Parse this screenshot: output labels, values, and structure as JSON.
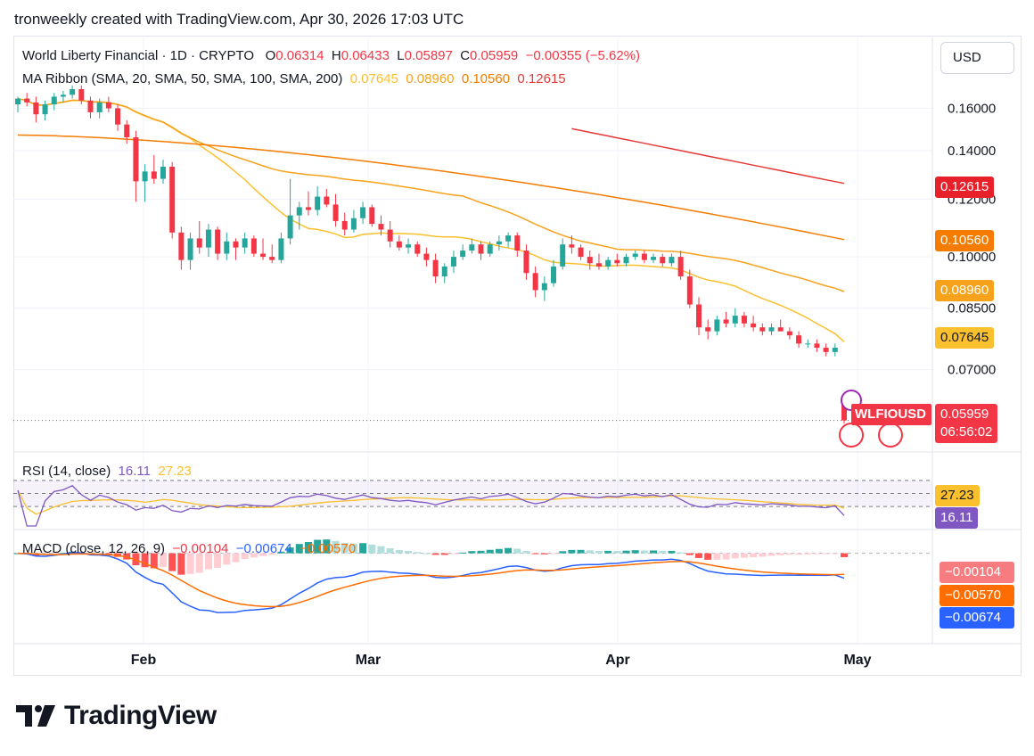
{
  "header": {
    "text": "tronweekly created with TradingView.com, Apr 30, 2026 17:03 UTC"
  },
  "currency_button": "USD",
  "legend": {
    "symbol_line": "World Liberty Financial · 1D · CRYPTO",
    "o_label": "O",
    "o_value": "0.06314",
    "h_label": "H",
    "h_value": "0.06433",
    "l_label": "L",
    "l_value": "0.05897",
    "c_label": "C",
    "c_value": "0.05959",
    "change": "−0.00355 (−5.62%)",
    "ma_title": "MA Ribbon (SMA, 20, SMA, 50, SMA, 100, SMA, 200)",
    "ma_values": [
      "0.07645",
      "0.08960",
      "0.10560",
      "0.12615"
    ],
    "rsi_title": "RSI (14, close)",
    "rsi_values": [
      "16.11",
      "27.23"
    ],
    "macd_title": "MACD (close, 12, 26, 9)",
    "macd_values": [
      "−0.00104",
      "−0.00674",
      "−0.00570"
    ]
  },
  "colors": {
    "up": "#26a69a",
    "down": "#f23645",
    "ma20": "#fbc02d",
    "ma50": "#f7a21b",
    "ma100": "#f57c00",
    "ma200": "#e53935",
    "rsi": "#7e57c2",
    "rsi_ma": "#fbc02d",
    "macd": "#2962ff",
    "signal": "#ff6d00"
  },
  "price_axis": [
    "0.16000",
    "0.14000",
    "0.12000",
    "0.10000",
    "0.08500",
    "0.07000"
  ],
  "time_axis": [
    "Feb",
    "Mar",
    "Apr",
    "May"
  ],
  "price_badges": {
    "ma200": "0.12615",
    "ma100": "0.10560",
    "ma50": "0.08960",
    "ma20": "0.07645",
    "last_price": "0.05959",
    "countdown": "06:56:02",
    "symbol": "WLFIOUSD"
  },
  "rsi_badges": {
    "rsi_ma": "27.23",
    "rsi": "16.11"
  },
  "macd_badges": {
    "hist": "−0.00104",
    "signal": "−0.00570",
    "macd": "−0.00674"
  },
  "brand": "TradingView",
  "chart_data": {
    "type": "candlestick",
    "title": "World Liberty Financial · 1D · CRYPTO",
    "x_range": [
      "Jan 2026",
      "Apr 30 2026"
    ],
    "price_ylim": [
      0.055,
      0.17
    ],
    "candles": [
      [
        0.162,
        0.166,
        0.158,
        0.165
      ],
      [
        0.165,
        0.168,
        0.161,
        0.163
      ],
      [
        0.163,
        0.166,
        0.153,
        0.157
      ],
      [
        0.157,
        0.164,
        0.154,
        0.162
      ],
      [
        0.162,
        0.168,
        0.159,
        0.166
      ],
      [
        0.166,
        0.169,
        0.163,
        0.167
      ],
      [
        0.167,
        0.172,
        0.165,
        0.17
      ],
      [
        0.17,
        0.172,
        0.162,
        0.164
      ],
      [
        0.164,
        0.166,
        0.155,
        0.158
      ],
      [
        0.158,
        0.165,
        0.155,
        0.163
      ],
      [
        0.163,
        0.166,
        0.158,
        0.16
      ],
      [
        0.16,
        0.162,
        0.149,
        0.152
      ],
      [
        0.152,
        0.154,
        0.143,
        0.146
      ],
      [
        0.146,
        0.149,
        0.119,
        0.127
      ],
      [
        0.127,
        0.134,
        0.119,
        0.131
      ],
      [
        0.131,
        0.138,
        0.126,
        0.128
      ],
      [
        0.128,
        0.136,
        0.126,
        0.133
      ],
      [
        0.133,
        0.135,
        0.106,
        0.108
      ],
      [
        0.108,
        0.11,
        0.096,
        0.099
      ],
      [
        0.099,
        0.108,
        0.096,
        0.106
      ],
      [
        0.106,
        0.112,
        0.101,
        0.103
      ],
      [
        0.103,
        0.111,
        0.1,
        0.109
      ],
      [
        0.109,
        0.11,
        0.099,
        0.101
      ],
      [
        0.101,
        0.108,
        0.099,
        0.105
      ],
      [
        0.105,
        0.106,
        0.099,
        0.103
      ],
      [
        0.103,
        0.108,
        0.101,
        0.106
      ],
      [
        0.106,
        0.107,
        0.1,
        0.101
      ],
      [
        0.101,
        0.106,
        0.099,
        0.1
      ],
      [
        0.1,
        0.104,
        0.098,
        0.099
      ],
      [
        0.099,
        0.108,
        0.098,
        0.106
      ],
      [
        0.106,
        0.128,
        0.104,
        0.114
      ],
      [
        0.114,
        0.119,
        0.109,
        0.117
      ],
      [
        0.117,
        0.123,
        0.114,
        0.116
      ],
      [
        0.116,
        0.125,
        0.114,
        0.121
      ],
      [
        0.121,
        0.124,
        0.117,
        0.118
      ],
      [
        0.118,
        0.122,
        0.11,
        0.112
      ],
      [
        0.112,
        0.115,
        0.107,
        0.109
      ],
      [
        0.109,
        0.116,
        0.108,
        0.113
      ],
      [
        0.113,
        0.119,
        0.111,
        0.117
      ],
      [
        0.117,
        0.118,
        0.11,
        0.111
      ],
      [
        0.111,
        0.114,
        0.107,
        0.109
      ],
      [
        0.109,
        0.112,
        0.103,
        0.105
      ],
      [
        0.105,
        0.107,
        0.102,
        0.103
      ],
      [
        0.103,
        0.106,
        0.101,
        0.104
      ],
      [
        0.104,
        0.105,
        0.1,
        0.101
      ],
      [
        0.101,
        0.103,
        0.097,
        0.099
      ],
      [
        0.099,
        0.101,
        0.092,
        0.094
      ],
      [
        0.094,
        0.098,
        0.092,
        0.097
      ],
      [
        0.097,
        0.102,
        0.095,
        0.1
      ],
      [
        0.1,
        0.104,
        0.099,
        0.102
      ],
      [
        0.102,
        0.106,
        0.101,
        0.104
      ],
      [
        0.104,
        0.105,
        0.099,
        0.101
      ],
      [
        0.101,
        0.105,
        0.1,
        0.104
      ],
      [
        0.104,
        0.107,
        0.102,
        0.105
      ],
      [
        0.105,
        0.108,
        0.103,
        0.107
      ],
      [
        0.107,
        0.108,
        0.1,
        0.102
      ],
      [
        0.102,
        0.104,
        0.093,
        0.095
      ],
      [
        0.095,
        0.097,
        0.088,
        0.09
      ],
      [
        0.09,
        0.094,
        0.087,
        0.092
      ],
      [
        0.092,
        0.099,
        0.091,
        0.097
      ],
      [
        0.097,
        0.106,
        0.096,
        0.104
      ],
      [
        0.104,
        0.107,
        0.101,
        0.103
      ],
      [
        0.103,
        0.104,
        0.099,
        0.1
      ],
      [
        0.1,
        0.102,
        0.096,
        0.098
      ],
      [
        0.098,
        0.101,
        0.096,
        0.097
      ],
      [
        0.097,
        0.1,
        0.096,
        0.099
      ],
      [
        0.099,
        0.101,
        0.097,
        0.098
      ],
      [
        0.098,
        0.101,
        0.097,
        0.1
      ],
      [
        0.1,
        0.102,
        0.099,
        0.101
      ],
      [
        0.101,
        0.102,
        0.098,
        0.099
      ],
      [
        0.099,
        0.101,
        0.098,
        0.1
      ],
      [
        0.1,
        0.101,
        0.097,
        0.098
      ],
      [
        0.098,
        0.101,
        0.097,
        0.1
      ],
      [
        0.1,
        0.102,
        0.093,
        0.094
      ],
      [
        0.094,
        0.096,
        0.085,
        0.086
      ],
      [
        0.086,
        0.088,
        0.078,
        0.08
      ],
      [
        0.08,
        0.082,
        0.077,
        0.079
      ],
      [
        0.079,
        0.083,
        0.078,
        0.082
      ],
      [
        0.082,
        0.084,
        0.08,
        0.081
      ],
      [
        0.081,
        0.085,
        0.08,
        0.083
      ],
      [
        0.083,
        0.084,
        0.08,
        0.081
      ],
      [
        0.081,
        0.083,
        0.079,
        0.08
      ],
      [
        0.08,
        0.081,
        0.078,
        0.079
      ],
      [
        0.079,
        0.081,
        0.078,
        0.08
      ],
      [
        0.08,
        0.082,
        0.079,
        0.079
      ],
      [
        0.079,
        0.08,
        0.077,
        0.078
      ],
      [
        0.078,
        0.079,
        0.075,
        0.076
      ],
      [
        0.076,
        0.077,
        0.075,
        0.076
      ],
      [
        0.076,
        0.077,
        0.074,
        0.075
      ],
      [
        0.075,
        0.076,
        0.073,
        0.074
      ],
      [
        0.074,
        0.076,
        0.073,
        0.075
      ],
      [
        0.06314,
        0.06433,
        0.05897,
        0.05959
      ]
    ],
    "ma20_end": 0.07645,
    "ma50_end": 0.0896,
    "ma100_end": 0.1056,
    "ma200_end": 0.12615,
    "rsi": {
      "ylim": [
        0,
        100
      ],
      "levels": [
        70,
        50,
        30
      ],
      "last": 16.11,
      "ma_last": 27.23
    },
    "macd": {
      "last_macd": -0.00674,
      "last_signal": -0.0057,
      "last_hist": -0.00104
    }
  }
}
